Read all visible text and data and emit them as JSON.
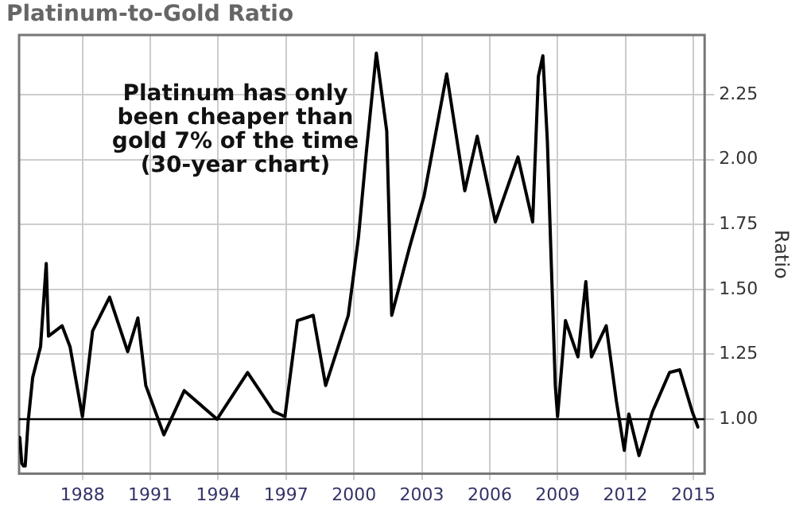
{
  "chart_data": {
    "type": "line",
    "title": "Platinum-to-Gold Ratio",
    "ylabel": "Ratio",
    "annotations": [
      "Platinum has only\nbeen cheaper than\ngold 7% of the time\n(30-year chart)"
    ],
    "x": [
      1985.23,
      1985.32,
      1985.4,
      1985.47,
      1985.6,
      1985.8,
      1986.15,
      1986.4,
      1986.5,
      1987.1,
      1987.45,
      1988.0,
      1988.45,
      1989.2,
      1990.0,
      1990.45,
      1990.8,
      1991.6,
      1992.5,
      1993.95,
      1995.3,
      1996.45,
      1996.95,
      1997.5,
      1998.2,
      1998.75,
      1999.75,
      2000.2,
      2000.55,
      2000.99,
      2001.45,
      2001.67,
      2002.45,
      2003.1,
      2004.1,
      2004.9,
      2005.45,
      2006.25,
      2007.25,
      2007.9,
      2008.15,
      2008.35,
      2008.55,
      2008.7,
      2008.9,
      2009.0,
      2009.35,
      2009.9,
      2010.25,
      2010.5,
      2011.15,
      2011.6,
      2011.95,
      2012.15,
      2012.6,
      2013.2,
      2013.95,
      2014.4,
      2014.95,
      2015.2
    ],
    "series": [
      {
        "color": "#000000",
        "values": [
          0.93,
          0.83,
          0.82,
          0.82,
          0.99,
          1.16,
          1.28,
          1.6,
          1.32,
          1.36,
          1.28,
          1.01,
          1.34,
          1.47,
          1.26,
          1.39,
          1.13,
          0.94,
          1.11,
          1.0,
          1.18,
          1.03,
          1.01,
          1.38,
          1.4,
          1.13,
          1.4,
          1.7,
          2.03,
          2.41,
          2.11,
          1.4,
          1.66,
          1.86,
          2.33,
          1.88,
          2.09,
          1.76,
          2.01,
          1.76,
          2.32,
          2.4,
          2.07,
          1.66,
          1.13,
          1.01,
          1.38,
          1.24,
          1.53,
          1.24,
          1.36,
          1.07,
          0.88,
          1.02,
          0.86,
          1.03,
          1.18,
          1.19,
          1.03,
          0.97
        ]
      }
    ],
    "xlim": [
      1985.2,
      2015.5
    ],
    "xticks": [
      1988,
      1991,
      1994,
      1997,
      2000,
      2003,
      2006,
      2009,
      2012,
      2015
    ],
    "ylim": [
      0.79,
      2.48
    ],
    "yticks": [
      {
        "value": 1.0,
        "label": "1.00"
      },
      {
        "value": 1.25,
        "label": "1.25"
      },
      {
        "value": 1.5,
        "label": "1.50"
      },
      {
        "value": 1.75,
        "label": "1.75"
      },
      {
        "value": 2.0,
        "label": "2.00"
      },
      {
        "value": 2.25,
        "label": "2.25"
      }
    ],
    "ref_lines": [
      {
        "axis": "y",
        "value": 1.0,
        "color": "#000000"
      }
    ],
    "grid": true,
    "legend": false,
    "marker": "none",
    "line_style": "solid"
  }
}
